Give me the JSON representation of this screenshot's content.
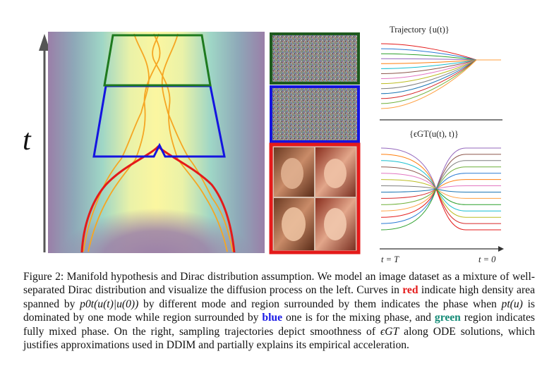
{
  "figure": {
    "t_axis_label": "t",
    "trajectory_title": "Trajectory {u(t)}",
    "eps_title": "{ϵGT(u(t), t)}",
    "x_left_label": "t = T",
    "x_right_label": "t = 0",
    "colors": {
      "red": "#e41a1a",
      "blue": "#1414e0",
      "green": "#1e7a1e",
      "background_purple": "#9a7fa8",
      "density_yellow": "#fbf6a0"
    },
    "trajectory_colors": [
      "#e41a1a",
      "#2a7bd4",
      "#2ca02c",
      "#9467bd",
      "#ff7f0e",
      "#17becf",
      "#8c564b",
      "#e377c2",
      "#bcbd22",
      "#7f7f7f",
      "#1f77b4",
      "#d62728",
      "#6fb03a",
      "#ff9f3f"
    ]
  },
  "caption": {
    "p1": "Figure 2: Manifold hypothesis and Dirac distribution assumption. We model an image dataset as a mixture of well-separated Dirac distribution and visualize the diffusion process on the left. Curves in ",
    "red_word": "red",
    "p2": " indicate high density area spanned by ",
    "math1": "p0t(u(t)|u(0))",
    "p3": " by different mode and region surrounded by them indicates the phase when ",
    "math2": "pt(u)",
    "p4": " is dominated by one mode while region surrounded by ",
    "blue_word": "blue",
    "p5": " one is for the mixing phase, and ",
    "green_word": "green",
    "p6": " region indicates fully mixed phase. On the right, sampling trajectories depict smoothness of ",
    "math3": "ϵGT",
    "p7": " along ODE solutions, which justifies approximations used in DDIM and partially explains its empirical acceleration."
  }
}
